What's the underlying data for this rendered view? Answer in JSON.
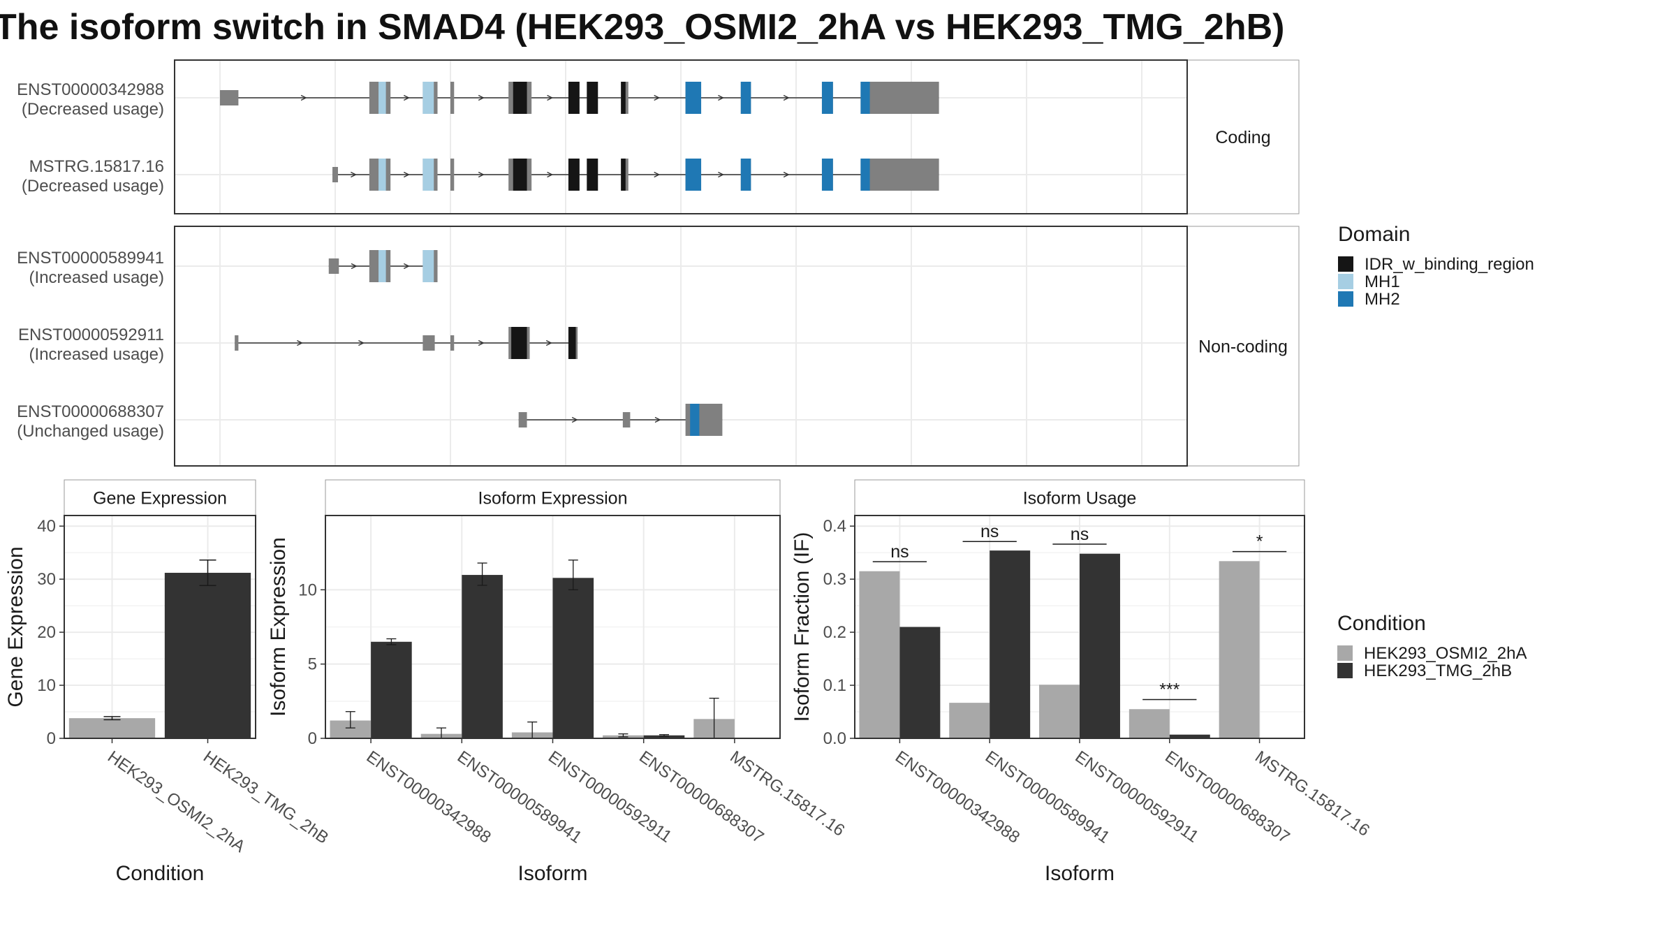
{
  "title": "The isoform switch in SMAD4 (HEK293_OSMI2_2hA vs HEK293_TMG_2hB)",
  "colors": {
    "idr": "#151515",
    "mh1": "#a6cee3",
    "mh2": "#1f78b4",
    "exon": "#808080",
    "cond_a": "#a8a8a8",
    "cond_b": "#333333",
    "grid": "#ebebeb",
    "panel_border": "#333333",
    "strip_border": "#999999"
  },
  "structure": {
    "x_range": [
      0,
      1000
    ],
    "groups": [
      {
        "label": "Coding",
        "transcripts": [
          {
            "id": "ENST00000342988",
            "usage": "(Decreased usage)",
            "exons": [
              [
                0,
                20,
                "u"
              ],
              [
                162,
                185,
                "c"
              ],
              [
                220,
                236,
                "c"
              ],
              [
                250,
                254,
                "c"
              ],
              [
                313,
                338,
                "c"
              ],
              [
                378,
                390,
                "c"
              ],
              [
                398,
                410,
                "c"
              ],
              [
                435,
                443,
                "c"
              ],
              [
                505,
                522,
                "c"
              ],
              [
                565,
                576,
                "c"
              ],
              [
                653,
                665,
                "c"
              ],
              [
                695,
                780,
                "c"
              ]
            ],
            "domains": [
              [
                172,
                180,
                "mh1"
              ],
              [
                220,
                232,
                "mh1"
              ],
              [
                318,
                333,
                "idr"
              ],
              [
                378,
                390,
                "idr"
              ],
              [
                398,
                410,
                "idr"
              ],
              [
                435,
                440,
                "idr"
              ],
              [
                505,
                522,
                "mh2"
              ],
              [
                565,
                576,
                "mh2"
              ],
              [
                653,
                665,
                "mh2"
              ],
              [
                695,
                705,
                "mh2"
              ]
            ]
          },
          {
            "id": "MSTRG.15817.16",
            "usage": "(Decreased usage)",
            "exons": [
              [
                122,
                128,
                "u"
              ],
              [
                162,
                185,
                "c"
              ],
              [
                220,
                236,
                "c"
              ],
              [
                250,
                254,
                "c"
              ],
              [
                313,
                338,
                "c"
              ],
              [
                378,
                390,
                "c"
              ],
              [
                398,
                410,
                "c"
              ],
              [
                435,
                443,
                "c"
              ],
              [
                505,
                522,
                "c"
              ],
              [
                565,
                576,
                "c"
              ],
              [
                653,
                665,
                "c"
              ],
              [
                695,
                780,
                "c"
              ]
            ],
            "domains": [
              [
                172,
                180,
                "mh1"
              ],
              [
                220,
                232,
                "mh1"
              ],
              [
                318,
                333,
                "idr"
              ],
              [
                378,
                390,
                "idr"
              ],
              [
                398,
                410,
                "idr"
              ],
              [
                435,
                440,
                "idr"
              ],
              [
                505,
                522,
                "mh2"
              ],
              [
                565,
                576,
                "mh2"
              ],
              [
                653,
                665,
                "mh2"
              ],
              [
                695,
                705,
                "mh2"
              ]
            ]
          }
        ]
      },
      {
        "label": "Non-coding",
        "transcripts": [
          {
            "id": "ENST00000589941",
            "usage": "(Increased usage)",
            "exons": [
              [
                118,
                129,
                "u"
              ],
              [
                162,
                185,
                "c"
              ],
              [
                220,
                236,
                "c"
              ]
            ],
            "domains": [
              [
                172,
                180,
                "mh1"
              ],
              [
                220,
                232,
                "mh1"
              ]
            ]
          },
          {
            "id": "ENST00000592911",
            "usage": "(Increased usage)",
            "exons": [
              [
                16,
                20,
                "u"
              ],
              [
                220,
                233,
                "u"
              ],
              [
                250,
                254,
                "u"
              ],
              [
                313,
                336,
                "c"
              ],
              [
                378,
                388,
                "c"
              ]
            ],
            "domains": [
              [
                316,
                333,
                "idr"
              ],
              [
                378,
                386,
                "idr"
              ]
            ]
          },
          {
            "id": "ENST00000688307",
            "usage": "(Unchanged usage)",
            "exons": [
              [
                324,
                333,
                "u"
              ],
              [
                437,
                445,
                "u"
              ],
              [
                505,
                545,
                "c"
              ]
            ],
            "domains": [
              [
                510,
                520,
                "mh2"
              ]
            ]
          }
        ]
      }
    ]
  },
  "legend_domain": {
    "title": "Domain",
    "items": [
      {
        "label": "IDR_w_binding_region",
        "key": "idr"
      },
      {
        "label": "MH1",
        "key": "mh1"
      },
      {
        "label": "MH2",
        "key": "mh2"
      }
    ]
  },
  "legend_condition": {
    "title": "Condition",
    "items": [
      {
        "label": "HEK293_OSMI2_2hA",
        "key": "cond_a"
      },
      {
        "label": "HEK293_TMG_2hB",
        "key": "cond_b"
      }
    ]
  },
  "chart_data": [
    {
      "type": "bar",
      "title": "Gene Expression",
      "xlabel": "Condition",
      "ylabel": "Gene Expression",
      "ylim": [
        0,
        42
      ],
      "yticks": [
        0,
        10,
        20,
        30,
        40
      ],
      "categories": [
        "HEK293_OSMI2_2hA",
        "HEK293_TMG_2hB"
      ],
      "values": [
        3.8,
        31.2
      ],
      "errors": [
        [
          3.5,
          4.1
        ],
        [
          28.8,
          33.6
        ]
      ]
    },
    {
      "type": "bar",
      "title": "Isoform Expression",
      "xlabel": "Isoform",
      "ylabel": "Isoform Expression",
      "ylim": [
        0,
        15
      ],
      "yticks": [
        0,
        5,
        10
      ],
      "categories": [
        "ENST00000342988",
        "ENST00000589941",
        "ENST00000592911",
        "ENST00000688307",
        "MSTRG.15817.16"
      ],
      "series": [
        {
          "name": "HEK293_OSMI2_2hA",
          "values": [
            1.2,
            0.3,
            0.4,
            0.2,
            1.3
          ],
          "errors": [
            [
              0.7,
              1.8
            ],
            [
              0.0,
              0.7
            ],
            [
              0.0,
              1.1
            ],
            [
              0.1,
              0.3
            ],
            [
              0.0,
              2.7
            ]
          ]
        },
        {
          "name": "HEK293_TMG_2hB",
          "values": [
            6.5,
            11.0,
            10.8,
            0.2,
            0.0
          ],
          "errors": [
            [
              6.3,
              6.7
            ],
            [
              10.3,
              11.8
            ],
            [
              10.0,
              12.0
            ],
            [
              0.15,
              0.25
            ],
            [
              0.0,
              0.0
            ]
          ]
        }
      ]
    },
    {
      "type": "bar",
      "title": "Isoform Usage",
      "xlabel": "Isoform",
      "ylabel": "Isoform Fraction (IF)",
      "ylim": [
        0,
        0.42
      ],
      "yticks": [
        0.0,
        0.1,
        0.2,
        0.3,
        0.4
      ],
      "categories": [
        "ENST00000342988",
        "ENST00000589941",
        "ENST00000592911",
        "ENST00000688307",
        "MSTRG.15817.16"
      ],
      "series": [
        {
          "name": "HEK293_OSMI2_2hA",
          "values": [
            0.315,
            0.067,
            0.101,
            0.055,
            0.334
          ]
        },
        {
          "name": "HEK293_TMG_2hB",
          "values": [
            0.21,
            0.354,
            0.348,
            0.007,
            0.0
          ]
        }
      ],
      "significance": [
        {
          "label": "ns",
          "y": 0.333
        },
        {
          "label": "ns",
          "y": 0.371
        },
        {
          "label": "ns",
          "y": 0.366
        },
        {
          "label": "***",
          "y": 0.073
        },
        {
          "label": "*",
          "y": 0.352
        }
      ]
    }
  ]
}
